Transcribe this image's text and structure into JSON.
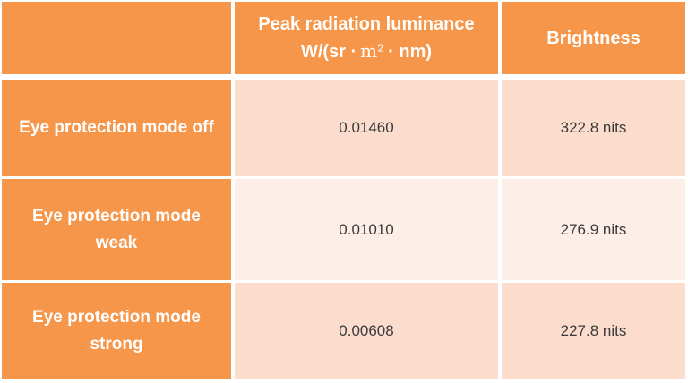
{
  "table": {
    "header": {
      "col1": "",
      "col2_line1": "Peak radiation luminance",
      "col2_unit_pre": "W/(sr ·",
      "col2_unit_m": "m²",
      "col2_unit_post": "· nm)",
      "col3": "Brightness"
    },
    "rows": [
      {
        "label": "Eye protection mode off",
        "peak": "0.01460",
        "brightness": "322.8 nits"
      },
      {
        "label": "Eye protection mode weak",
        "peak": "0.01010",
        "brightness": "276.9 nits"
      },
      {
        "label": "Eye protection mode strong",
        "peak": "0.00608",
        "brightness": "227.8 nits"
      }
    ],
    "colors": {
      "accent_orange": "#F5964A",
      "band_dark_pink": "#FBDCCD",
      "band_light_pink": "#FDEEE8",
      "header_text": "#FFFFFF",
      "value_text": "#3A3A3A",
      "gutter": "#FFFFFF"
    }
  },
  "chart_data": {
    "type": "table",
    "title": "",
    "columns": [
      "",
      "Peak radiation luminance W/(sr · m² · nm)",
      "Brightness"
    ],
    "rows": [
      [
        "Eye protection mode off",
        "0.01460",
        "322.8 nits"
      ],
      [
        "Eye protection mode weak",
        "0.01010",
        "276.9 nits"
      ],
      [
        "Eye protection mode strong",
        "0.00608",
        "227.8 nits"
      ]
    ],
    "peak_radiation_luminance_values": [
      0.0146,
      0.0101,
      0.00608
    ],
    "brightness_nits_values": [
      322.8,
      276.9,
      227.8
    ],
    "layout_hints": {
      "header_style": "orange solid",
      "row_label_column_style": "orange solid",
      "data_rows_style": "alternating pink bands (dark, light, dark)",
      "cell_separator": "white gutters"
    }
  }
}
